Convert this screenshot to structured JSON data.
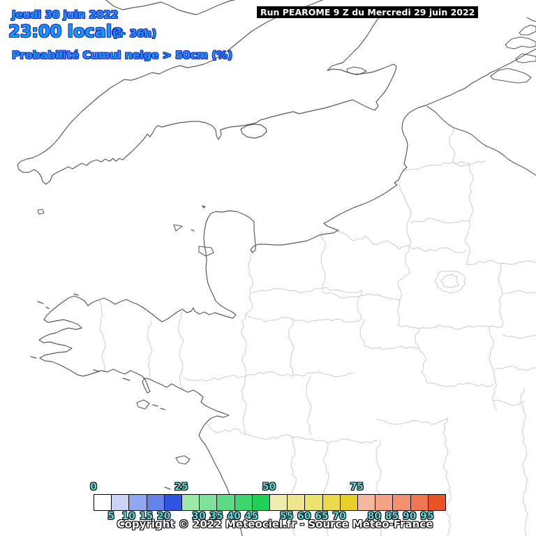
{
  "header": {
    "date_line": "Jeudi 30 juin 2022",
    "time_line": "23:00 locale",
    "offset_label": "(+ 36h)",
    "variable_label": "Probabilité Cumul neige > 50cm (%)",
    "text_color": "#119aff",
    "outline_color": "#2222bb",
    "run_label": "Run PEAROME 9 Z du Mercredi 29 juin 2022",
    "run_bg": "#000000",
    "run_text_color": "#ffffff"
  },
  "map": {
    "sea_color": "#ffffff",
    "coast_color": "#5a5a5a",
    "department_color": "#cccccc"
  },
  "legend": {
    "unit": "%",
    "min": 0,
    "max": 100,
    "step": 5,
    "cell_colors": [
      "#ffffff",
      "#ccd4f6",
      "#92a8ee",
      "#6484ea",
      "#2e55e2",
      "#9ee8ac",
      "#7ee29a",
      "#5cdc84",
      "#3cd66e",
      "#22d058",
      "#f0eeae",
      "#eee68c",
      "#ece26e",
      "#ecda4c",
      "#e8d026",
      "#f4b89e",
      "#f4a286",
      "#f29070",
      "#ee7652",
      "#e85428"
    ],
    "top_labels": [
      {
        "value": "0",
        "boundary_index": 0
      },
      {
        "value": "25",
        "boundary_index": 5
      },
      {
        "value": "50",
        "boundary_index": 10
      },
      {
        "value": "75",
        "boundary_index": 15
      }
    ],
    "bottom_labels": [
      {
        "value": "5",
        "boundary_index": 1
      },
      {
        "value": "10",
        "boundary_index": 2
      },
      {
        "value": "15",
        "boundary_index": 3
      },
      {
        "value": "20",
        "boundary_index": 4
      },
      {
        "value": "30",
        "boundary_index": 6
      },
      {
        "value": "35",
        "boundary_index": 7
      },
      {
        "value": "40",
        "boundary_index": 8
      },
      {
        "value": "45",
        "boundary_index": 9
      },
      {
        "value": "55",
        "boundary_index": 11
      },
      {
        "value": "60",
        "boundary_index": 12
      },
      {
        "value": "65",
        "boundary_index": 13
      },
      {
        "value": "70",
        "boundary_index": 14
      },
      {
        "value": "80",
        "boundary_index": 16
      },
      {
        "value": "85",
        "boundary_index": 17
      },
      {
        "value": "90",
        "boundary_index": 18
      },
      {
        "value": "95",
        "boundary_index": 19
      }
    ],
    "label_color": "#55dde0"
  },
  "footer": {
    "copyright": "Copyright © 2022 Meteociel.fr - Source Météo-France"
  }
}
